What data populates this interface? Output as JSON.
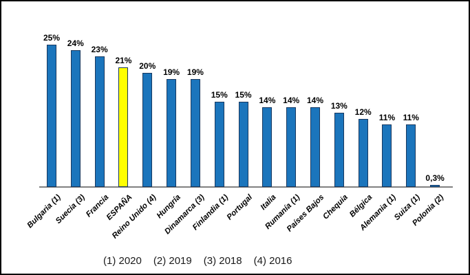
{
  "chart_data": {
    "type": "bar",
    "title": "",
    "xlabel": "",
    "ylabel": "",
    "categories": [
      "Bulgaria (1)",
      "Suecia (3)",
      "Francia",
      "ESPAÑA",
      "Reino Unido (4)",
      "Hungría",
      "Dinamarca (3)",
      "Finlandia (1)",
      "Portugal",
      "Italia",
      "Rumanía (1)",
      "Países Bajos",
      "Chequia",
      "Bélgica",
      "Alemania (1)",
      "Suiza (1)",
      "Polonia (2)"
    ],
    "values": [
      25,
      24,
      23,
      21,
      20,
      19,
      19,
      15,
      15,
      14,
      14,
      14,
      13,
      12,
      11,
      11,
      0.3
    ],
    "value_labels": [
      "25%",
      "24%",
      "23%",
      "21%",
      "20%",
      "19%",
      "19%",
      "15%",
      "15%",
      "14%",
      "14%",
      "14%",
      "13%",
      "12%",
      "11%",
      "11%",
      "0,3%"
    ],
    "highlight_index": 3,
    "highlight_category": "ESPAÑA",
    "ylim": [
      0,
      27
    ],
    "grid": false,
    "legend_position": "none",
    "colors": {
      "bar": "#1B75BC",
      "highlight": "#FFFF00",
      "bar_border": "#17375E",
      "axis_line": "#808080",
      "text": "#000000"
    },
    "footnotes": [
      "(1) 2020",
      "(2) 2019",
      "(3) 2018",
      "(4) 2016"
    ]
  }
}
